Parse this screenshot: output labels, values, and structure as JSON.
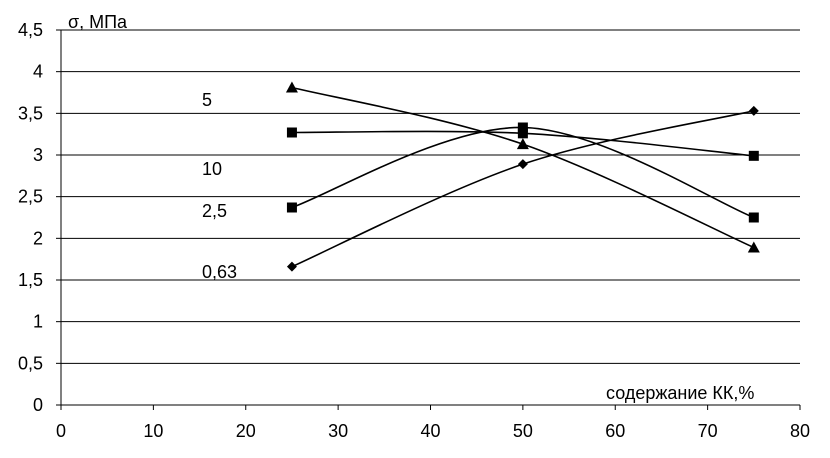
{
  "chart_data": {
    "type": "scatter",
    "title": "",
    "ylabel": "σ, МПа",
    "xlabel": "содержание КК,%",
    "xlim": [
      0,
      80
    ],
    "ylim": [
      0,
      4.5
    ],
    "x_ticks": [
      0,
      10,
      20,
      30,
      40,
      50,
      60,
      70,
      80
    ],
    "x_tick_labels": [
      "0",
      "10",
      "20",
      "30",
      "40",
      "50",
      "60",
      "70",
      "80"
    ],
    "y_ticks": [
      0,
      0.5,
      1,
      1.5,
      2,
      2.5,
      3,
      3.5,
      4,
      4.5
    ],
    "y_tick_labels": [
      "0",
      "0,5",
      "1",
      "1,5",
      "2",
      "2,5",
      "3",
      "3,5",
      "4",
      "4,5"
    ],
    "grid": "horizontal",
    "line_style": "smooth",
    "series": [
      {
        "label": "5",
        "marker": "triangle",
        "x": [
          25,
          50,
          75
        ],
        "y": [
          3.81,
          3.13,
          1.89
        ]
      },
      {
        "label": "10",
        "marker": "square",
        "x": [
          25,
          50,
          75
        ],
        "y": [
          3.27,
          3.26,
          2.99
        ]
      },
      {
        "label": "2,5",
        "marker": "square",
        "x": [
          25,
          50,
          75
        ],
        "y": [
          2.37,
          3.33,
          2.25
        ]
      },
      {
        "label": "0,63",
        "marker": "diamond",
        "x": [
          25,
          50,
          75
        ],
        "y": [
          1.66,
          2.89,
          3.53
        ]
      }
    ],
    "colors": {
      "line": "#000000",
      "grid": "#000000",
      "background": "#ffffff"
    }
  }
}
